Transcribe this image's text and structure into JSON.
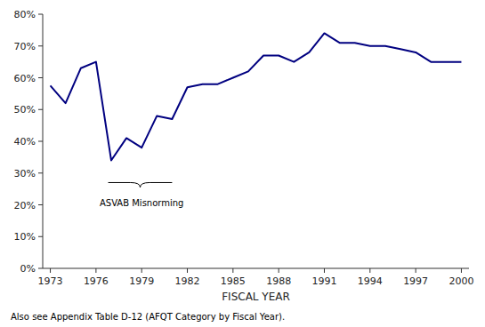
{
  "chart_data": {
    "type": "line",
    "x": [
      1973,
      1974,
      1975,
      1976,
      1977,
      1978,
      1979,
      1980,
      1981,
      1982,
      1983,
      1984,
      1985,
      1986,
      1987,
      1988,
      1989,
      1990,
      1991,
      1992,
      1993,
      1994,
      1995,
      1996,
      1997,
      1998,
      1999,
      2000
    ],
    "values": [
      0.575,
      0.52,
      0.63,
      0.65,
      0.34,
      0.41,
      0.38,
      0.48,
      0.47,
      0.57,
      0.58,
      0.58,
      0.6,
      0.62,
      0.67,
      0.67,
      0.65,
      0.68,
      0.74,
      0.71,
      0.71,
      0.7,
      0.7,
      0.69,
      0.68,
      0.65,
      0.65,
      0.65
    ],
    "color": "#000080",
    "xlabel": "FISCAL YEAR",
    "xlim": [
      1972.5,
      2000.5
    ],
    "xticks": [
      1973,
      1976,
      1979,
      1982,
      1985,
      1988,
      1991,
      1994,
      1997,
      2000
    ],
    "ylim": [
      0,
      0.8
    ],
    "yticks": [
      {
        "value": 0.0,
        "label": "0%"
      },
      {
        "value": 0.1,
        "label": "10%"
      },
      {
        "value": 0.2,
        "label": "20%"
      },
      {
        "value": 0.3,
        "label": "30%"
      },
      {
        "value": 0.4,
        "label": "40%"
      },
      {
        "value": 0.5,
        "label": "50%"
      },
      {
        "value": 0.6,
        "label": "60%"
      },
      {
        "value": 0.7,
        "label": "70%"
      },
      {
        "value": 0.8,
        "label": "80%"
      }
    ],
    "grid": false,
    "annotations": [
      {
        "text": "ASVAB Misnorming",
        "x": 1979.0,
        "y": 0.225,
        "bracket": {
          "x1": 1976.8,
          "x2": 1981.0,
          "y_top": 0.27,
          "y_mid": 0.255
        }
      }
    ],
    "footnote": "Also see Appendix Table D-12 (AFQT Category by Fiscal Year)."
  }
}
